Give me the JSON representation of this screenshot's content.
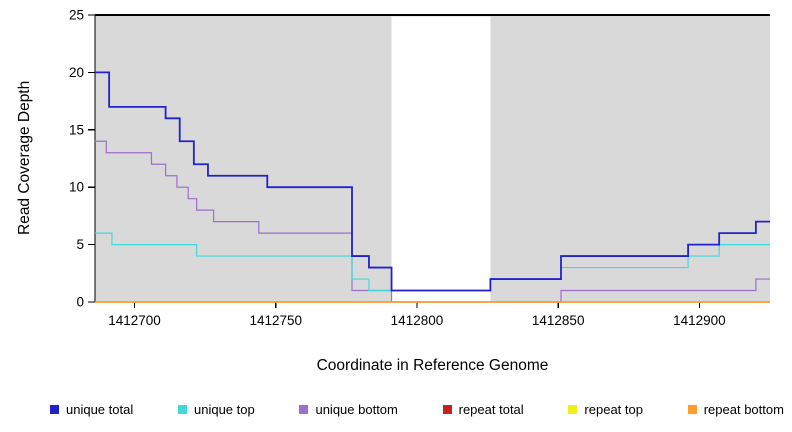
{
  "chart_data": {
    "type": "line",
    "line_style": "step-after",
    "title": "",
    "xlabel": "Coordinate in Reference Genome",
    "ylabel": "Read Coverage Depth",
    "xlim": [
      1412686,
      1412925
    ],
    "ylim": [
      0,
      25
    ],
    "x_ticks": [
      1412700,
      1412750,
      1412800,
      1412850,
      1412900
    ],
    "y_ticks": [
      0,
      5,
      10,
      15,
      20,
      25
    ],
    "grid": false,
    "plot_background": "#d9d9d9",
    "gap_region": {
      "x_start": 1412791,
      "x_end": 1412826,
      "color": "#ffffff"
    },
    "legend_position": "bottom",
    "axis_color": "#000000",
    "draw_order": [
      "repeat total",
      "repeat top",
      "unique bottom",
      "repeat bottom",
      "unique top",
      "unique total"
    ],
    "series": [
      {
        "name": "unique total",
        "color": "#2222cc",
        "width": 1.8,
        "steps": [
          [
            1412686,
            20
          ],
          [
            1412691,
            17
          ],
          [
            1412711,
            16
          ],
          [
            1412716,
            14
          ],
          [
            1412721,
            12
          ],
          [
            1412726,
            11
          ],
          [
            1412747,
            10
          ],
          [
            1412777,
            4
          ],
          [
            1412783,
            3
          ],
          [
            1412791,
            1
          ],
          [
            1412826,
            2
          ],
          [
            1412851,
            4
          ],
          [
            1412896,
            5
          ],
          [
            1412907,
            6
          ],
          [
            1412920,
            7
          ]
        ]
      },
      {
        "name": "unique top",
        "color": "#3fd9d9",
        "width": 1.2,
        "steps": [
          [
            1412686,
            6
          ],
          [
            1412692,
            5
          ],
          [
            1412722,
            4
          ],
          [
            1412777,
            2
          ],
          [
            1412783,
            1
          ],
          [
            1412826,
            2
          ],
          [
            1412851,
            3
          ],
          [
            1412896,
            4
          ],
          [
            1412907,
            5
          ]
        ]
      },
      {
        "name": "unique bottom",
        "color": "#9d6ece",
        "width": 1.2,
        "steps": [
          [
            1412686,
            14
          ],
          [
            1412690,
            13
          ],
          [
            1412706,
            12
          ],
          [
            1412711,
            11
          ],
          [
            1412715,
            10
          ],
          [
            1412719,
            9
          ],
          [
            1412722,
            8
          ],
          [
            1412728,
            7
          ],
          [
            1412744,
            6
          ],
          [
            1412777,
            1
          ],
          [
            1412791,
            0
          ],
          [
            1412851,
            1
          ],
          [
            1412920,
            2
          ]
        ]
      },
      {
        "name": "repeat total",
        "color": "#c22222",
        "width": 1.2,
        "steps": [
          [
            1412686,
            0
          ]
        ]
      },
      {
        "name": "repeat top",
        "color": "#f0ef1a",
        "width": 1.2,
        "steps": [
          [
            1412686,
            0
          ]
        ]
      },
      {
        "name": "repeat bottom",
        "color": "#ff9d2e",
        "width": 1.4,
        "steps": [
          [
            1412686,
            0
          ]
        ]
      }
    ]
  }
}
